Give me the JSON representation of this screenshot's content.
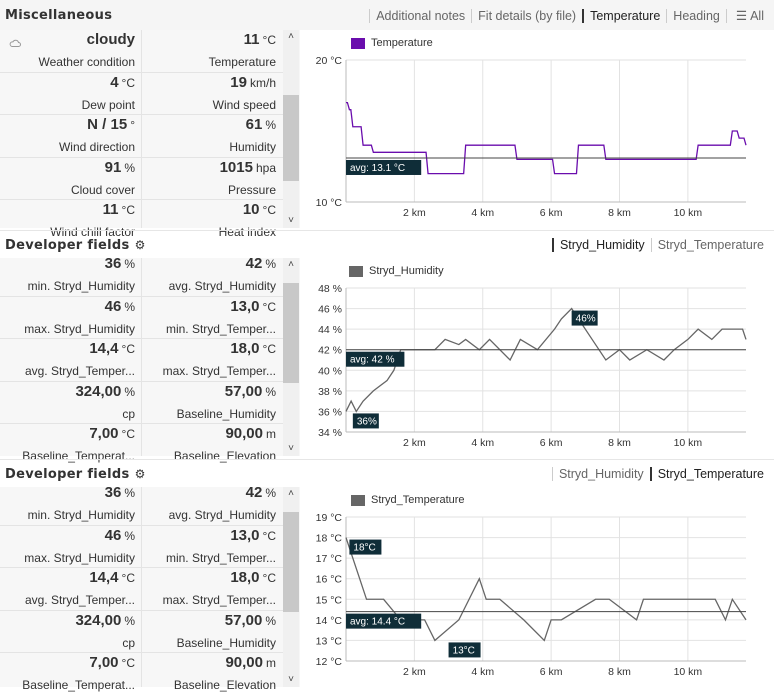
{
  "misc": {
    "title": "Miscellaneous",
    "tabs": [
      "Additional notes",
      "Fit details (by file)",
      "Temperature",
      "Heading"
    ],
    "more_label": "All",
    "cells": [
      {
        "value": "cloudy",
        "unit": "",
        "label": "Weather condition"
      },
      {
        "value": "11",
        "unit": "°C",
        "label": "Temperature"
      },
      {
        "value": "4",
        "unit": "°C",
        "label": "Dew point"
      },
      {
        "value": "19",
        "unit": "km/h",
        "label": "Wind speed"
      },
      {
        "value": "N / 15",
        "unit": "°",
        "label": "Wind direction"
      },
      {
        "value": "61",
        "unit": "%",
        "label": "Humidity"
      },
      {
        "value": "91",
        "unit": "%",
        "label": "Cloud cover"
      },
      {
        "value": "1015",
        "unit": "hpa",
        "label": "Pressure"
      },
      {
        "value": "11",
        "unit": "°C",
        "label": "Wind chill factor"
      },
      {
        "value": "10",
        "unit": "°C",
        "label": "Heat index"
      }
    ]
  },
  "dev1": {
    "title": "Developer fields",
    "tabs": [
      "Stryd_Humidity",
      "Stryd_Temperature"
    ],
    "cells": [
      {
        "value": "36",
        "unit": "%",
        "label": "min. Stryd_Humidity"
      },
      {
        "value": "42",
        "unit": "%",
        "label": "avg. Stryd_Humidity"
      },
      {
        "value": "46",
        "unit": "%",
        "label": "max. Stryd_Humidity"
      },
      {
        "value": "13,0",
        "unit": "°C",
        "label": "min. Stryd_Temper..."
      },
      {
        "value": "14,4",
        "unit": "°C",
        "label": "avg. Stryd_Temper..."
      },
      {
        "value": "18,0",
        "unit": "°C",
        "label": "max. Stryd_Temper..."
      },
      {
        "value": "324,00",
        "unit": "%",
        "label": "cp"
      },
      {
        "value": "57,00",
        "unit": "%",
        "label": "Baseline_Humidity"
      },
      {
        "value": "7,00",
        "unit": "°C",
        "label": "Baseline_Temperat..."
      },
      {
        "value": "90,00",
        "unit": "m",
        "label": "Baseline_Elevation"
      }
    ]
  },
  "dev2": {
    "title": "Developer fields",
    "tabs": [
      "Stryd_Humidity",
      "Stryd_Temperature"
    ],
    "cells": [
      {
        "value": "36",
        "unit": "%",
        "label": "min. Stryd_Humidity"
      },
      {
        "value": "42",
        "unit": "%",
        "label": "avg. Stryd_Humidity"
      },
      {
        "value": "46",
        "unit": "%",
        "label": "max. Stryd_Humidity"
      },
      {
        "value": "13,0",
        "unit": "°C",
        "label": "min. Stryd_Temper..."
      },
      {
        "value": "14,4",
        "unit": "°C",
        "label": "avg. Stryd_Temper..."
      },
      {
        "value": "18,0",
        "unit": "°C",
        "label": "max. Stryd_Temper..."
      },
      {
        "value": "324,00",
        "unit": "%",
        "label": "cp"
      },
      {
        "value": "57,00",
        "unit": "%",
        "label": "Baseline_Humidity"
      },
      {
        "value": "7,00",
        "unit": "°C",
        "label": "Baseline_Temperat..."
      },
      {
        "value": "90,00",
        "unit": "m",
        "label": "Baseline_Elevation"
      }
    ]
  },
  "chart_data": [
    {
      "type": "line",
      "legend": "Temperature",
      "color": "#6a0dad",
      "xlabel_ticks": [
        "2 km",
        "4 km",
        "6 km",
        "8 km",
        "10 km"
      ],
      "xticks": [
        2,
        4,
        6,
        8,
        10
      ],
      "xlim": [
        0,
        11.7
      ],
      "ylim": [
        10,
        20
      ],
      "yticks": [
        10,
        20
      ],
      "ytick_labels": [
        "10 °C",
        "20 °C"
      ],
      "avg": 13.1,
      "avg_label": "avg: 13.1 °C",
      "x": [
        0,
        0.1,
        0.2,
        0.5,
        0.8,
        1.3,
        2.2,
        2.4,
        3.3,
        3.5,
        4.7,
        5,
        5.9,
        6.1,
        6.6,
        6.8,
        7.4,
        7.6,
        10.1,
        10.3,
        10.7,
        11.2,
        11.3,
        11.5,
        11.7
      ],
      "y": [
        17,
        16.5,
        15.3,
        14,
        13.5,
        13.5,
        13.5,
        12,
        12,
        14,
        14,
        13,
        13,
        12,
        12,
        14,
        14,
        13,
        13,
        14,
        14,
        14,
        15,
        14.5,
        14
      ],
      "labels": []
    },
    {
      "type": "line",
      "legend": "Stryd_Humidity",
      "color": "#666666",
      "xlabel_ticks": [
        "2 km",
        "4 km",
        "6 km",
        "8 km",
        "10 km"
      ],
      "xticks": [
        2,
        4,
        6,
        8,
        10
      ],
      "xlim": [
        0,
        11.7
      ],
      "ylim": [
        34,
        48
      ],
      "yticks": [
        34,
        36,
        38,
        40,
        42,
        44,
        46,
        48
      ],
      "ytick_labels": [
        "34 %",
        "36 %",
        "38 %",
        "40 %",
        "42 %",
        "44 %",
        "46 %",
        "48 %"
      ],
      "avg": 42,
      "avg_label": "avg: 42 %",
      "x": [
        0,
        0.15,
        0.3,
        0.5,
        0.8,
        1.2,
        1.4,
        1.6,
        2.1,
        2.6,
        2.9,
        3.3,
        3.5,
        3.9,
        4.2,
        4.8,
        5.1,
        5.6,
        6.1,
        6.3,
        6.6,
        6.8,
        7.2,
        7.6,
        8.0,
        8.3,
        8.8,
        9.3,
        9.6,
        10,
        10.3,
        10.7,
        11.0,
        11.6,
        11.7
      ],
      "y": [
        36,
        37,
        36,
        37,
        38,
        39,
        40,
        42,
        42,
        42,
        43,
        42.5,
        43,
        42,
        43,
        41,
        43,
        42,
        44,
        45,
        46,
        45,
        43,
        41,
        42,
        41,
        42,
        41,
        42,
        43,
        44,
        43,
        44,
        44,
        43
      ],
      "labels": [
        {
          "x": 0.2,
          "y": 36,
          "text": "36%"
        },
        {
          "x": 6.6,
          "y": 46,
          "text": "46%"
        }
      ]
    },
    {
      "type": "line",
      "legend": "Stryd_Temperature",
      "color": "#666666",
      "xlabel_ticks": [
        "2 km",
        "4 km",
        "6 km",
        "8 km",
        "10 km"
      ],
      "xticks": [
        2,
        4,
        6,
        8,
        10
      ],
      "xlim": [
        0,
        11.7
      ],
      "ylim": [
        12,
        19
      ],
      "yticks": [
        12,
        13,
        14,
        15,
        16,
        17,
        18,
        19
      ],
      "ytick_labels": [
        "12 °C",
        "13 °C",
        "14 °C",
        "15 °C",
        "16 °C",
        "17 °C",
        "18 °C",
        "19 °C"
      ],
      "avg": 14.4,
      "avg_label": "avg: 14.4 °C",
      "x": [
        0,
        0.2,
        0.4,
        0.6,
        1.1,
        1.6,
        2.3,
        2.6,
        3.3,
        3.9,
        4.1,
        4.5,
        5.2,
        5.8,
        6.0,
        6.3,
        7.3,
        7.7,
        8.5,
        8.7,
        10.8,
        11.1,
        11.3,
        11.7
      ],
      "y": [
        18,
        17,
        16,
        15,
        15,
        14,
        14,
        13,
        14,
        16,
        15,
        15,
        14,
        13,
        14,
        14,
        15,
        15,
        14,
        15,
        15,
        14,
        15,
        14
      ],
      "labels": [
        {
          "x": 0.1,
          "y": 18,
          "text": "18°C"
        },
        {
          "x": 3.0,
          "y": 13,
          "text": "13°C"
        }
      ]
    }
  ]
}
